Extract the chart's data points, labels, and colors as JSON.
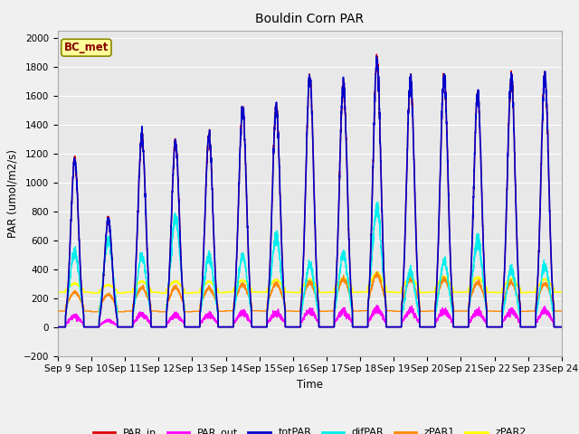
{
  "title": "Bouldin Corn PAR",
  "xlabel": "Time",
  "ylabel": "PAR (umol/m2/s)",
  "ylim": [
    -200,
    2050
  ],
  "yticks": [
    -200,
    0,
    200,
    400,
    600,
    800,
    1000,
    1200,
    1400,
    1600,
    1800,
    2000
  ],
  "start_day": 9,
  "end_day": 24,
  "n_days": 15,
  "points_per_day": 288,
  "colors": {
    "PAR_in": "#dd0000",
    "PAR_out": "#ff00ff",
    "totPAR": "#0000cc",
    "difPAR": "#00eeee",
    "zPAR1": "#ff8800",
    "zPAR2": "#ffff00"
  },
  "linewidths": {
    "PAR_in": 1.0,
    "PAR_out": 1.0,
    "totPAR": 1.2,
    "difPAR": 1.0,
    "zPAR1": 1.0,
    "zPAR2": 1.2
  },
  "bg_color": "#f0f0f0",
  "plot_bg_color": "#e8e8e8",
  "legend_label": "BC_met",
  "legend_bg": "#ffff99",
  "legend_border": "#888800",
  "tot_peaks": [
    1150,
    740,
    1320,
    1270,
    1320,
    1510,
    1510,
    1730,
    1670,
    1840,
    1700,
    1720,
    1600,
    1720,
    1720
  ],
  "dif_peaks": [
    520,
    600,
    490,
    750,
    490,
    490,
    620,
    430,
    500,
    820,
    380,
    450,
    600,
    400,
    420
  ],
  "z1_base": [
    110,
    105,
    110,
    105,
    108,
    112,
    110,
    108,
    110,
    112,
    108,
    110,
    110,
    108,
    110
  ],
  "z1_peaks": [
    130,
    120,
    160,
    170,
    160,
    180,
    190,
    200,
    220,
    250,
    220,
    220,
    200,
    200,
    190
  ],
  "z2_base": [
    240,
    235,
    240,
    235,
    238,
    242,
    240,
    238,
    240,
    242,
    238,
    240,
    240,
    238,
    240
  ],
  "z2_peaks": [
    60,
    55,
    75,
    80,
    75,
    80,
    85,
    90,
    95,
    130,
    100,
    105,
    100,
    95,
    90
  ],
  "par_out_factor": [
    0.065,
    0.06,
    0.065,
    0.065,
    0.065,
    0.065,
    0.065,
    0.065,
    0.065,
    0.065,
    0.065,
    0.065,
    0.065,
    0.065,
    0.065
  ]
}
